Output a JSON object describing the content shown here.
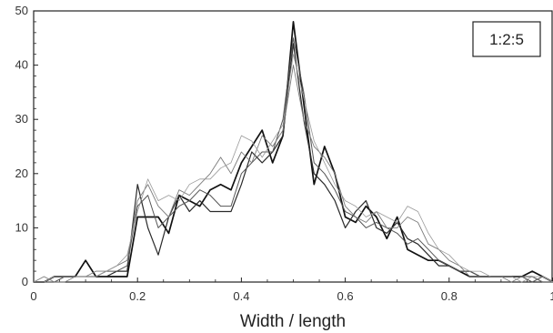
{
  "chart_data": {
    "type": "line",
    "title": "",
    "xlabel": "Width / length",
    "ylabel": "",
    "xlim": [
      0,
      1
    ],
    "ylim": [
      0,
      50
    ],
    "x_ticks": [
      "0",
      "0.2",
      "0.4",
      "0.6",
      "0.8",
      "1"
    ],
    "y_ticks": [
      "0",
      "10",
      "20",
      "30",
      "40",
      "50"
    ],
    "grid": false,
    "legend_box": "1:2:5",
    "legend_placement": "top-right",
    "x": [
      0.0,
      0.02,
      0.04,
      0.06,
      0.08,
      0.1,
      0.12,
      0.14,
      0.16,
      0.18,
      0.2,
      0.22,
      0.24,
      0.26,
      0.28,
      0.3,
      0.32,
      0.34,
      0.36,
      0.38,
      0.4,
      0.42,
      0.44,
      0.46,
      0.48,
      0.5,
      0.52,
      0.54,
      0.56,
      0.58,
      0.6,
      0.62,
      0.64,
      0.66,
      0.68,
      0.7,
      0.72,
      0.74,
      0.76,
      0.78,
      0.8,
      0.82,
      0.84,
      0.86,
      0.88,
      0.9,
      0.92,
      0.94,
      0.96,
      0.98,
      1.0
    ],
    "series": [
      {
        "values": [
          0,
          0,
          1,
          1,
          1,
          4,
          1,
          1,
          1,
          1,
          12,
          12,
          12,
          9,
          16,
          15,
          14,
          17,
          18,
          17,
          22,
          25,
          28,
          22,
          27,
          48,
          33,
          18,
          25,
          20,
          12,
          11,
          14,
          12,
          8,
          12,
          6,
          5,
          4,
          4,
          3,
          2,
          1,
          1,
          1,
          1,
          1,
          1,
          2,
          1,
          0
        ],
        "color": "#111111",
        "width": 1.7
      },
      {
        "values": [
          0,
          0,
          1,
          1,
          1,
          1,
          1,
          1,
          2,
          2,
          18,
          10,
          5,
          12,
          16,
          13,
          15,
          13,
          13,
          13,
          18,
          24,
          22,
          24,
          27,
          44,
          30,
          20,
          18,
          15,
          10,
          13,
          15,
          10,
          9,
          11,
          8,
          7,
          5,
          3,
          3,
          2,
          2,
          1,
          1,
          1,
          1,
          1,
          1,
          0,
          0
        ],
        "color": "#2a2a2a",
        "width": 1.2
      },
      {
        "values": [
          0,
          0,
          0,
          1,
          1,
          1,
          1,
          2,
          2,
          3,
          14,
          16,
          10,
          12,
          14,
          15,
          17,
          16,
          14,
          14,
          20,
          22,
          24,
          24,
          30,
          45,
          35,
          22,
          20,
          17,
          13,
          12,
          10,
          11,
          10,
          9,
          7,
          8,
          6,
          4,
          3,
          2,
          2,
          1,
          1,
          1,
          1,
          1,
          0,
          1,
          0
        ],
        "color": "#555555",
        "width": 1.0
      },
      {
        "values": [
          0,
          1,
          0,
          0,
          1,
          1,
          2,
          2,
          3,
          4,
          15,
          18,
          14,
          12,
          17,
          16,
          18,
          20,
          23,
          20,
          24,
          22,
          27,
          25,
          28,
          40,
          30,
          25,
          23,
          20,
          14,
          12,
          11,
          13,
          10,
          10,
          12,
          11,
          7,
          6,
          4,
          3,
          1,
          1,
          1,
          1,
          0,
          1,
          1,
          0,
          0
        ],
        "color": "#7a7a7a",
        "width": 0.9
      },
      {
        "values": [
          0,
          0,
          1,
          1,
          1,
          1,
          1,
          2,
          3,
          5,
          13,
          19,
          15,
          16,
          15,
          18,
          19,
          19,
          21,
          22,
          27,
          26,
          23,
          26,
          29,
          42,
          34,
          26,
          22,
          18,
          15,
          14,
          12,
          13,
          12,
          11,
          14,
          13,
          9,
          6,
          5,
          3,
          2,
          2,
          1,
          1,
          1,
          0,
          1,
          1,
          0
        ],
        "color": "#9a9a9a",
        "width": 0.8
      }
    ]
  }
}
